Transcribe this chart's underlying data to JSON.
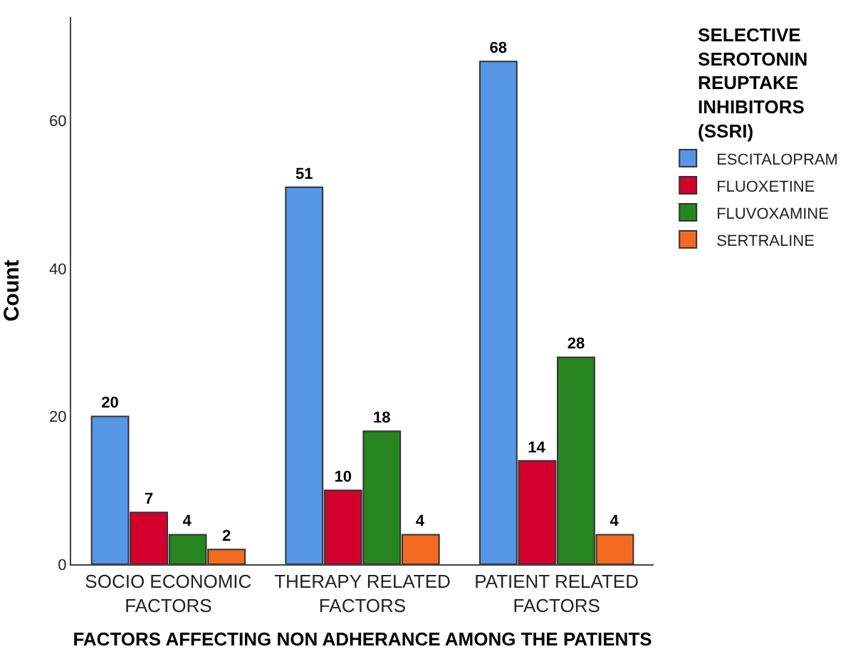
{
  "chart_data": {
    "type": "bar",
    "xlabel": "FACTORS AFFECTING NON ADHERANCE AMONG THE PATIENTS",
    "ylabel": "Count",
    "legend_title": "SELECTIVE SEROTONIN REUPTAKE INHIBITORS (SSRI)",
    "categories": [
      "SOCIO ECONOMIC FACTORS",
      "THERAPY RELATED FACTORS",
      "PATIENT RELATED FACTORS"
    ],
    "series": [
      {
        "name": "ESCITALOPRAM",
        "color": "#5596e6",
        "values": [
          20,
          51,
          68
        ]
      },
      {
        "name": "FLUOXETINE",
        "color": "#d3002d",
        "values": [
          7,
          10,
          14
        ]
      },
      {
        "name": "FLUVOXAMINE",
        "color": "#26851f",
        "values": [
          4,
          18,
          28
        ]
      },
      {
        "name": "SERTRALINE",
        "color": "#f26b21",
        "values": [
          2,
          4,
          4
        ]
      }
    ],
    "ylim": [
      0,
      74
    ],
    "yticks": [
      0,
      20,
      40,
      60
    ],
    "grid": false,
    "legend": "top right",
    "data_labels": true
  }
}
